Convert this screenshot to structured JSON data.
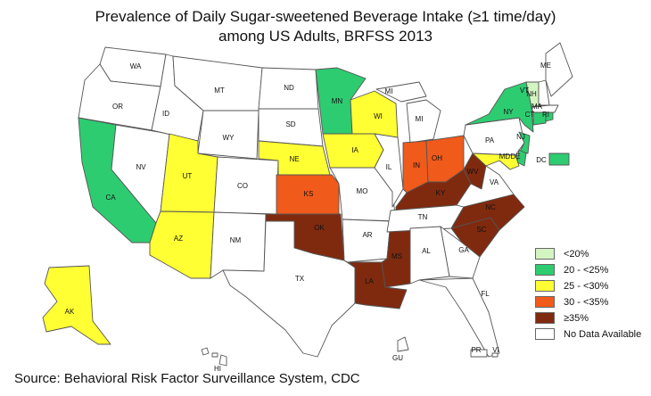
{
  "title": {
    "line1": "Prevalence of Daily Sugar-sweetened Beverage Intake (≥1 time/day)",
    "line2": "among US Adults, BRFSS 2013"
  },
  "colors": {
    "lt20": "#d3f5c2",
    "c20_25": "#2ecc71",
    "c25_30": "#ffff33",
    "c30_35": "#f05a1a",
    "ge35": "#7f2a0f",
    "nodata": "#ffffff"
  },
  "legend": [
    {
      "label": "<20%",
      "class": "lt20"
    },
    {
      "label": "20 - <25%",
      "class": "c20_25"
    },
    {
      "label": "25 - <30%",
      "class": "c25_30"
    },
    {
      "label": "30 - <35%",
      "class": "c30_35"
    },
    {
      "label": "≥35%",
      "class": "ge35"
    },
    {
      "label": "No Data Available",
      "class": "nodata"
    }
  ],
  "states": {
    "WA": "nodata",
    "OR": "nodata",
    "CA": "c20_25",
    "NV": "nodata",
    "ID": "nodata",
    "MT": "nodata",
    "WY": "nodata",
    "UT": "c25_30",
    "AZ": "c25_30",
    "CO": "nodata",
    "NM": "nodata",
    "ND": "nodata",
    "SD": "nodata",
    "NE": "c25_30",
    "KS": "c30_35",
    "OK": "ge35",
    "TX": "nodata",
    "MN": "c20_25",
    "IA": "c25_30",
    "MO": "nodata",
    "AR": "nodata",
    "LA": "ge35",
    "WI": "c25_30",
    "IL": "nodata",
    "MS": "ge35",
    "MI": "nodata",
    "IN": "c30_35",
    "KY": "ge35",
    "TN": "nodata",
    "AL": "nodata",
    "OH": "c30_35",
    "WV": "ge35",
    "GA": "nodata",
    "FL": "nodata",
    "SC": "ge35",
    "NC": "ge35",
    "VA": "nodata",
    "PA": "nodata",
    "NY": "c20_25",
    "ME": "nodata",
    "VT": "lt20",
    "NH": "nodata",
    "MA": "nodata",
    "CT": "c20_25",
    "RI": "c20_25",
    "NJ": "c20_25",
    "DE": "c20_25",
    "MD": "c25_30",
    "DC": "c20_25",
    "AK": "c25_30",
    "HI": "nodata",
    "GU": "nodata",
    "PR": "nodata",
    "VI": "nodata"
  },
  "source": "Source: Behavioral Risk Factor Surveillance System, CDC"
}
